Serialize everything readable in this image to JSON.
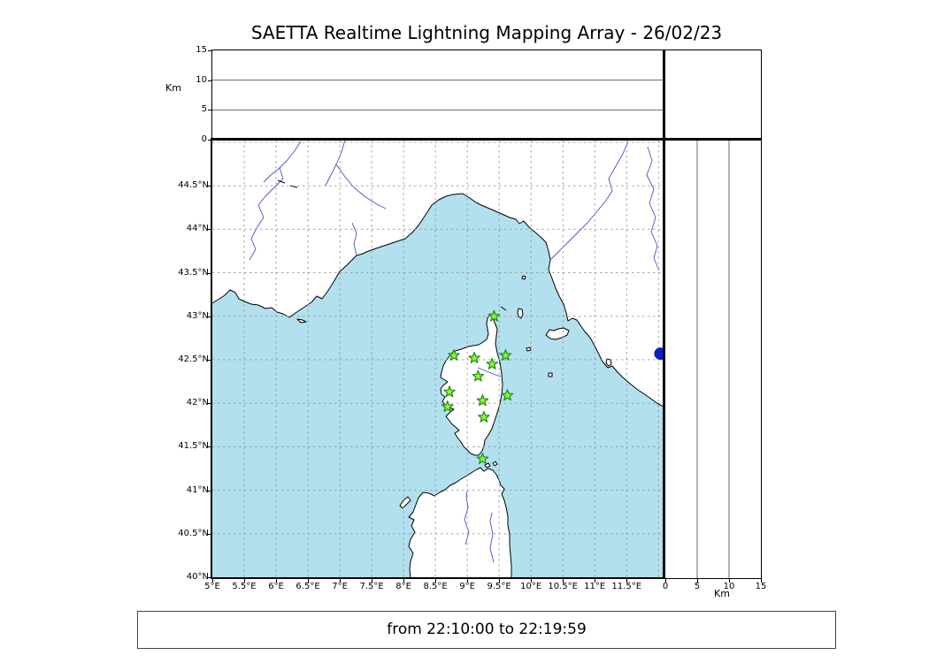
{
  "title": "SAETTA Realtime Lightning Mapping Array - 26/02/23",
  "footer": {
    "text": "from 22:10:00 to 22:19:59"
  },
  "colors": {
    "sea": "#b2e0ee",
    "land": "#ffffff",
    "coastline": "#000000",
    "river": "#4553c8",
    "grid": "#999999",
    "station_fill": "#8ff436",
    "station_stroke": "#1e8b1e",
    "detection_dot": "#0f1ec4"
  },
  "top_panel": {
    "ylabel": "Km",
    "yticks": [
      0,
      5,
      10,
      15
    ],
    "ymax": 15,
    "gridlines": [
      5,
      10
    ]
  },
  "right_panel": {
    "xlabel": "Km",
    "xticks": [
      0,
      5,
      10,
      15
    ],
    "xmax": 15,
    "gridlines": [
      5,
      10
    ]
  },
  "map": {
    "lon_min": 5.0,
    "lon_max": 12.08,
    "lat_min": 40.0,
    "lat_max": 45.03,
    "lon_ticks": [
      {
        "label": "5°E",
        "lon": 5.0
      },
      {
        "label": "5.5°E",
        "lon": 5.5
      },
      {
        "label": "6°E",
        "lon": 6.0
      },
      {
        "label": "6.5°E",
        "lon": 6.5
      },
      {
        "label": "7°E",
        "lon": 7.0
      },
      {
        "label": "7.5°E",
        "lon": 7.5
      },
      {
        "label": "8°E",
        "lon": 8.0
      },
      {
        "label": "8.5°E",
        "lon": 8.5
      },
      {
        "label": "9°E",
        "lon": 9.0
      },
      {
        "label": "9.5°E",
        "lon": 9.5
      },
      {
        "label": "10°E",
        "lon": 10.0
      },
      {
        "label": "10.5°E",
        "lon": 10.5
      },
      {
        "label": "11°E",
        "lon": 11.0
      },
      {
        "label": "11.5°E",
        "lon": 11.5
      }
    ],
    "lat_ticks": [
      {
        "label": "40°N",
        "lat": 40.0
      },
      {
        "label": "40.5°N",
        "lat": 40.5
      },
      {
        "label": "41°N",
        "lat": 41.0
      },
      {
        "label": "41.5°N",
        "lat": 41.5
      },
      {
        "label": "42°N",
        "lat": 42.0
      },
      {
        "label": "42.5°N",
        "lat": 42.5
      },
      {
        "label": "43°N",
        "lat": 43.0
      },
      {
        "label": "43.5°N",
        "lat": 43.5
      },
      {
        "label": "44°N",
        "lat": 44.0
      },
      {
        "label": "44.5°N",
        "lat": 44.5
      }
    ],
    "stations": [
      {
        "lon": 9.42,
        "lat": 43.0
      },
      {
        "lon": 8.79,
        "lat": 42.55
      },
      {
        "lon": 9.11,
        "lat": 42.52
      },
      {
        "lon": 9.39,
        "lat": 42.45
      },
      {
        "lon": 9.6,
        "lat": 42.55
      },
      {
        "lon": 9.17,
        "lat": 42.31
      },
      {
        "lon": 8.72,
        "lat": 42.13
      },
      {
        "lon": 8.69,
        "lat": 41.96
      },
      {
        "lon": 9.63,
        "lat": 42.09
      },
      {
        "lon": 9.24,
        "lat": 42.03
      },
      {
        "lon": 9.26,
        "lat": 41.84
      },
      {
        "lon": 9.24,
        "lat": 41.36
      }
    ],
    "detection_dot": {
      "lon": 12.03,
      "lat": 42.57
    }
  },
  "chart_data": {
    "type": "scatter",
    "title": "SAETTA Realtime Lightning Mapping Array - 26/02/23",
    "xlim": [
      5.0,
      12.08
    ],
    "ylim": [
      40.0,
      45.03
    ],
    "x_tick_labels": [
      "5°E",
      "5.5°E",
      "6°E",
      "6.5°E",
      "7°E",
      "7.5°E",
      "8°E",
      "8.5°E",
      "9°E",
      "9.5°E",
      "10°E",
      "10.5°E",
      "11°E",
      "11.5°E"
    ],
    "y_tick_labels": [
      "40°N",
      "40.5°N",
      "41°N",
      "41.5°N",
      "42°N",
      "42.5°N",
      "43°N",
      "43.5°N",
      "44°N",
      "44.5°N"
    ],
    "grid": true,
    "series": [
      {
        "name": "green-star-markers",
        "marker": "star",
        "points": [
          [
            9.42,
            43.0
          ],
          [
            8.79,
            42.55
          ],
          [
            9.11,
            42.52
          ],
          [
            9.39,
            42.45
          ],
          [
            9.6,
            42.55
          ],
          [
            9.17,
            42.31
          ],
          [
            8.72,
            42.13
          ],
          [
            8.69,
            41.96
          ],
          [
            9.63,
            42.09
          ],
          [
            9.24,
            42.03
          ],
          [
            9.26,
            41.84
          ],
          [
            9.24,
            41.36
          ]
        ]
      },
      {
        "name": "blue-circle-marker",
        "marker": "circle",
        "points": [
          [
            12.03,
            42.57
          ]
        ]
      }
    ],
    "subplots": [
      {
        "name": "altitude-strip-top",
        "axis_label": "Km",
        "ticks": [
          0,
          5,
          10,
          15
        ],
        "points": []
      },
      {
        "name": "altitude-strip-right",
        "axis_label": "Km",
        "ticks": [
          0,
          5,
          10,
          15
        ],
        "points": []
      }
    ],
    "annotations": [
      "from 22:10:00 to 22:19:59"
    ]
  }
}
